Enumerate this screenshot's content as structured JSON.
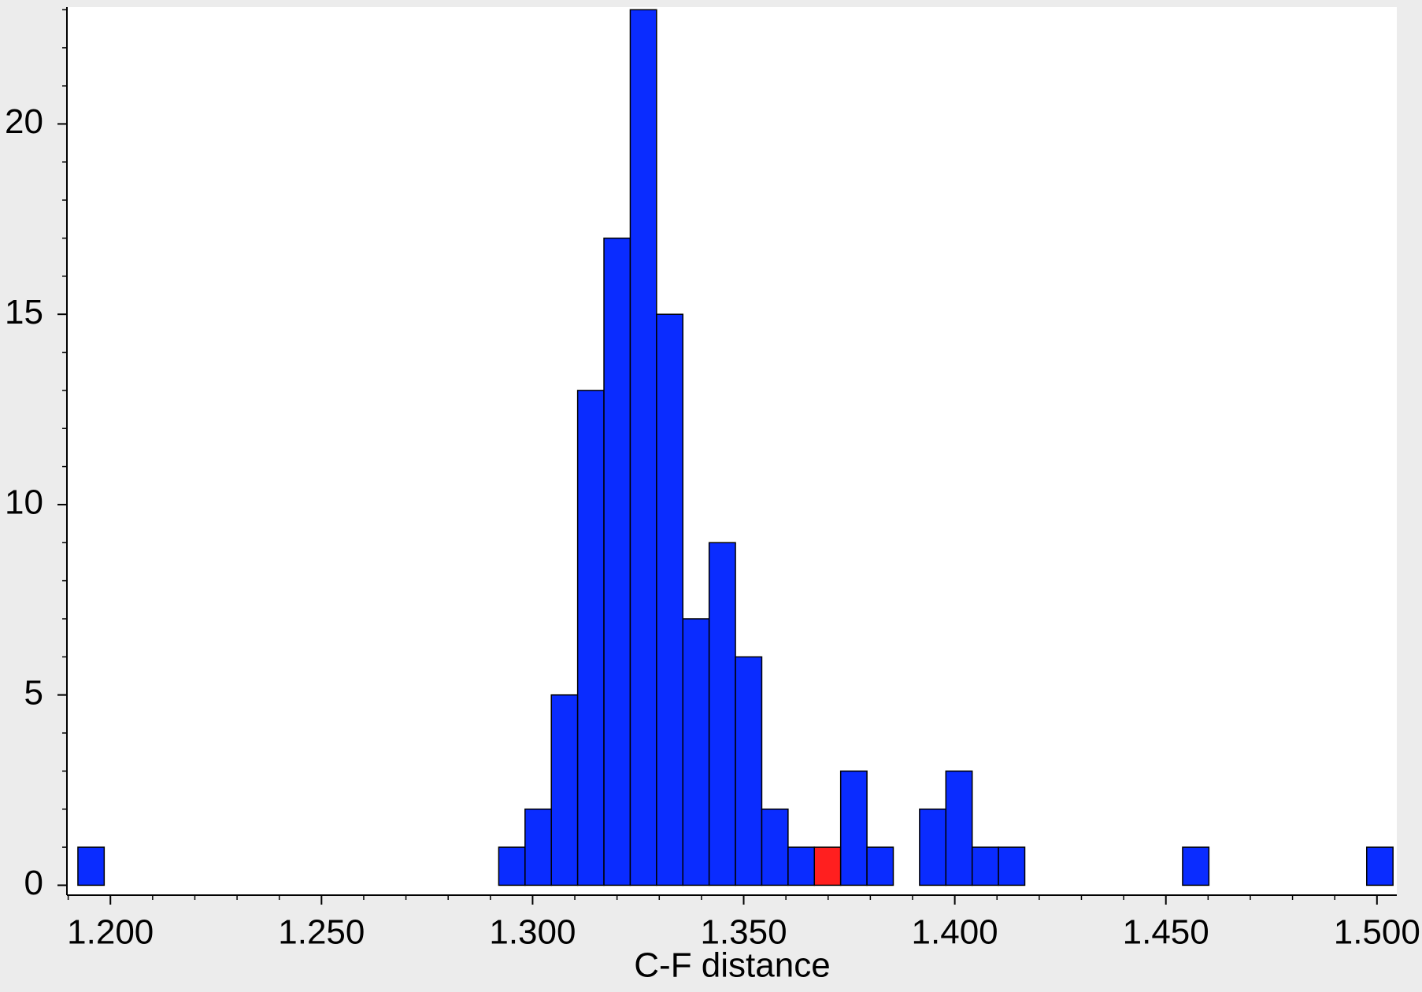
{
  "chart_data": {
    "type": "histogram",
    "x_label": "C-F distance",
    "bins": [
      1.1923,
      1.19853,
      1.20476,
      1.21099,
      1.21722,
      1.22345,
      1.22968,
      1.23591,
      1.24214,
      1.24837,
      1.2546,
      1.26083,
      1.26706,
      1.27329,
      1.27952,
      1.28575,
      1.29198,
      1.29821,
      1.30444,
      1.31067,
      1.3169,
      1.32313,
      1.32936,
      1.33559,
      1.34182,
      1.34805,
      1.35428,
      1.36051,
      1.36674,
      1.37297,
      1.3792,
      1.38543,
      1.39166,
      1.39789,
      1.40412,
      1.41035,
      1.41658,
      1.42281,
      1.42904,
      1.43527,
      1.4415,
      1.44773,
      1.45396,
      1.46019,
      1.46642,
      1.47265,
      1.47888,
      1.48511,
      1.49134,
      1.49757,
      1.5038
    ],
    "values": [
      1,
      0,
      0,
      0,
      0,
      0,
      0,
      0,
      0,
      0,
      0,
      0,
      0,
      0,
      0,
      0,
      1,
      2,
      5,
      13,
      17,
      23,
      15,
      7,
      9,
      6,
      2,
      1,
      1,
      3,
      1,
      0,
      2,
      3,
      1,
      1,
      0,
      0,
      0,
      0,
      0,
      0,
      1,
      0,
      0,
      0,
      0,
      0,
      0,
      1
    ],
    "colors": [
      "#0a2cff",
      "#0a2cff",
      "#0a2cff",
      "#0a2cff",
      "#0a2cff",
      "#0a2cff",
      "#0a2cff",
      "#0a2cff",
      "#0a2cff",
      "#0a2cff",
      "#0a2cff",
      "#0a2cff",
      "#0a2cff",
      "#0a2cff",
      "#0a2cff",
      "#0a2cff",
      "#0a2cff",
      "#0a2cff",
      "#0a2cff",
      "#0a2cff",
      "#0a2cff",
      "#0a2cff",
      "#0a2cff",
      "#0a2cff",
      "#0a2cff",
      "#0a2cff",
      "#0a2cff",
      "#0a2cff",
      "#ff1f1f",
      "#0a2cff",
      "#0a2cff",
      "#0a2cff",
      "#0a2cff",
      "#0a2cff",
      "#0a2cff",
      "#0a2cff",
      "#0a2cff",
      "#0a2cff",
      "#0a2cff",
      "#0a2cff",
      "#0a2cff",
      "#0a2cff",
      "#0a2cff",
      "#0a2cff",
      "#0a2cff",
      "#0a2cff",
      "#0a2cff",
      "#0a2cff",
      "#0a2cff",
      "#0a2cff"
    ],
    "xlim": [
      1.1897,
      1.5047
    ],
    "xticks": [
      {
        "value": 1.2,
        "label": "1.200"
      },
      {
        "value": 1.25,
        "label": "1.250"
      },
      {
        "value": 1.3,
        "label": "1.300"
      },
      {
        "value": 1.35,
        "label": "1.350"
      },
      {
        "value": 1.4,
        "label": "1.400"
      },
      {
        "value": 1.45,
        "label": "1.450"
      },
      {
        "value": 1.5,
        "label": "1.500"
      }
    ],
    "ylim": [
      -0.26,
      23.07
    ],
    "yticks": [
      0,
      5,
      10,
      15,
      20
    ],
    "x_minor_per_major": 5,
    "y_minor_per_major": 5,
    "grid": false
  }
}
